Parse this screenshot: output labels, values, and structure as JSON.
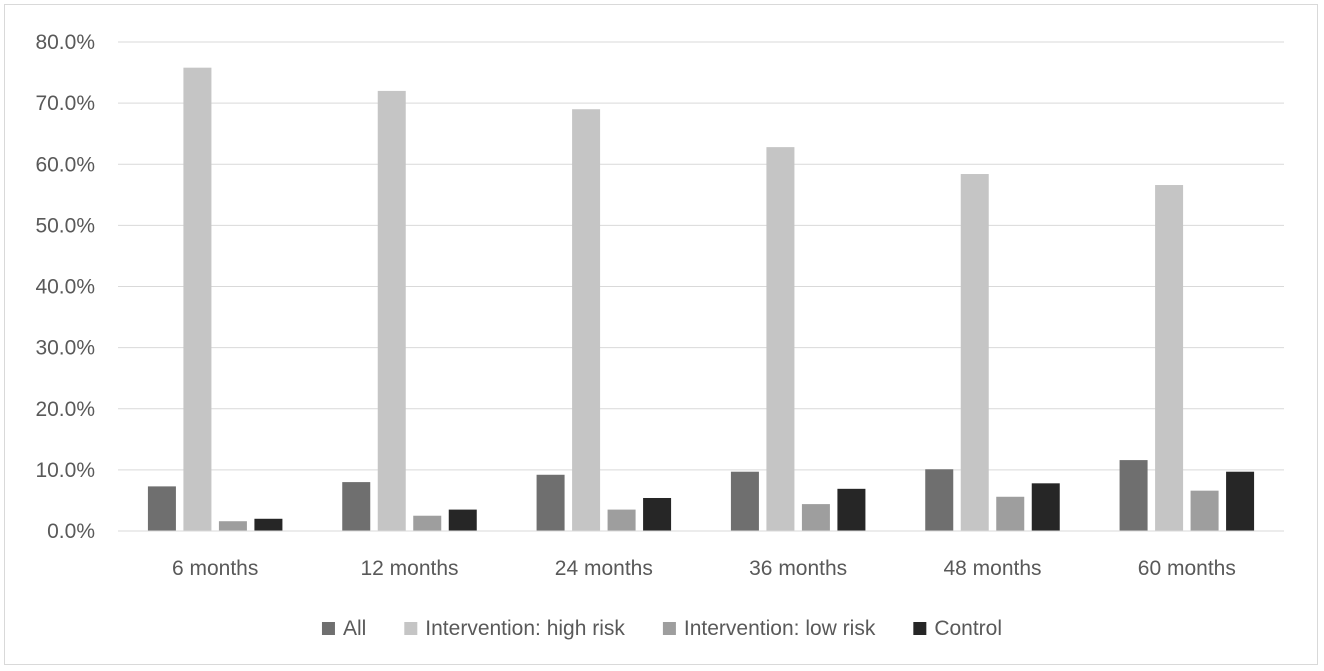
{
  "chart_data": {
    "type": "bar",
    "title": "",
    "xlabel": "",
    "ylabel": "",
    "categories": [
      "6 months",
      "12 months",
      "24 months",
      "36 months",
      "48 months",
      "60 months"
    ],
    "series": [
      {
        "name": "All",
        "color": "#6f6f6f",
        "values": [
          7.3,
          8.0,
          9.2,
          9.7,
          10.1,
          11.6
        ]
      },
      {
        "name": "Intervention: high risk",
        "color": "#c5c5c5",
        "values": [
          75.8,
          72.0,
          69.0,
          62.8,
          58.4,
          56.6
        ]
      },
      {
        "name": "Intervention: low risk",
        "color": "#9e9e9e",
        "values": [
          1.6,
          2.5,
          3.5,
          4.4,
          5.6,
          6.6
        ]
      },
      {
        "name": "Control",
        "color": "#262626",
        "values": [
          2.0,
          3.5,
          5.4,
          6.9,
          7.8,
          9.7
        ]
      }
    ],
    "ylim": [
      0,
      80
    ],
    "yticks": [
      "0.0%",
      "10.0%",
      "20.0%",
      "30.0%",
      "40.0%",
      "50.0%",
      "60.0%",
      "70.0%",
      "80.0%"
    ],
    "grid": true,
    "legend_position": "bottom"
  }
}
